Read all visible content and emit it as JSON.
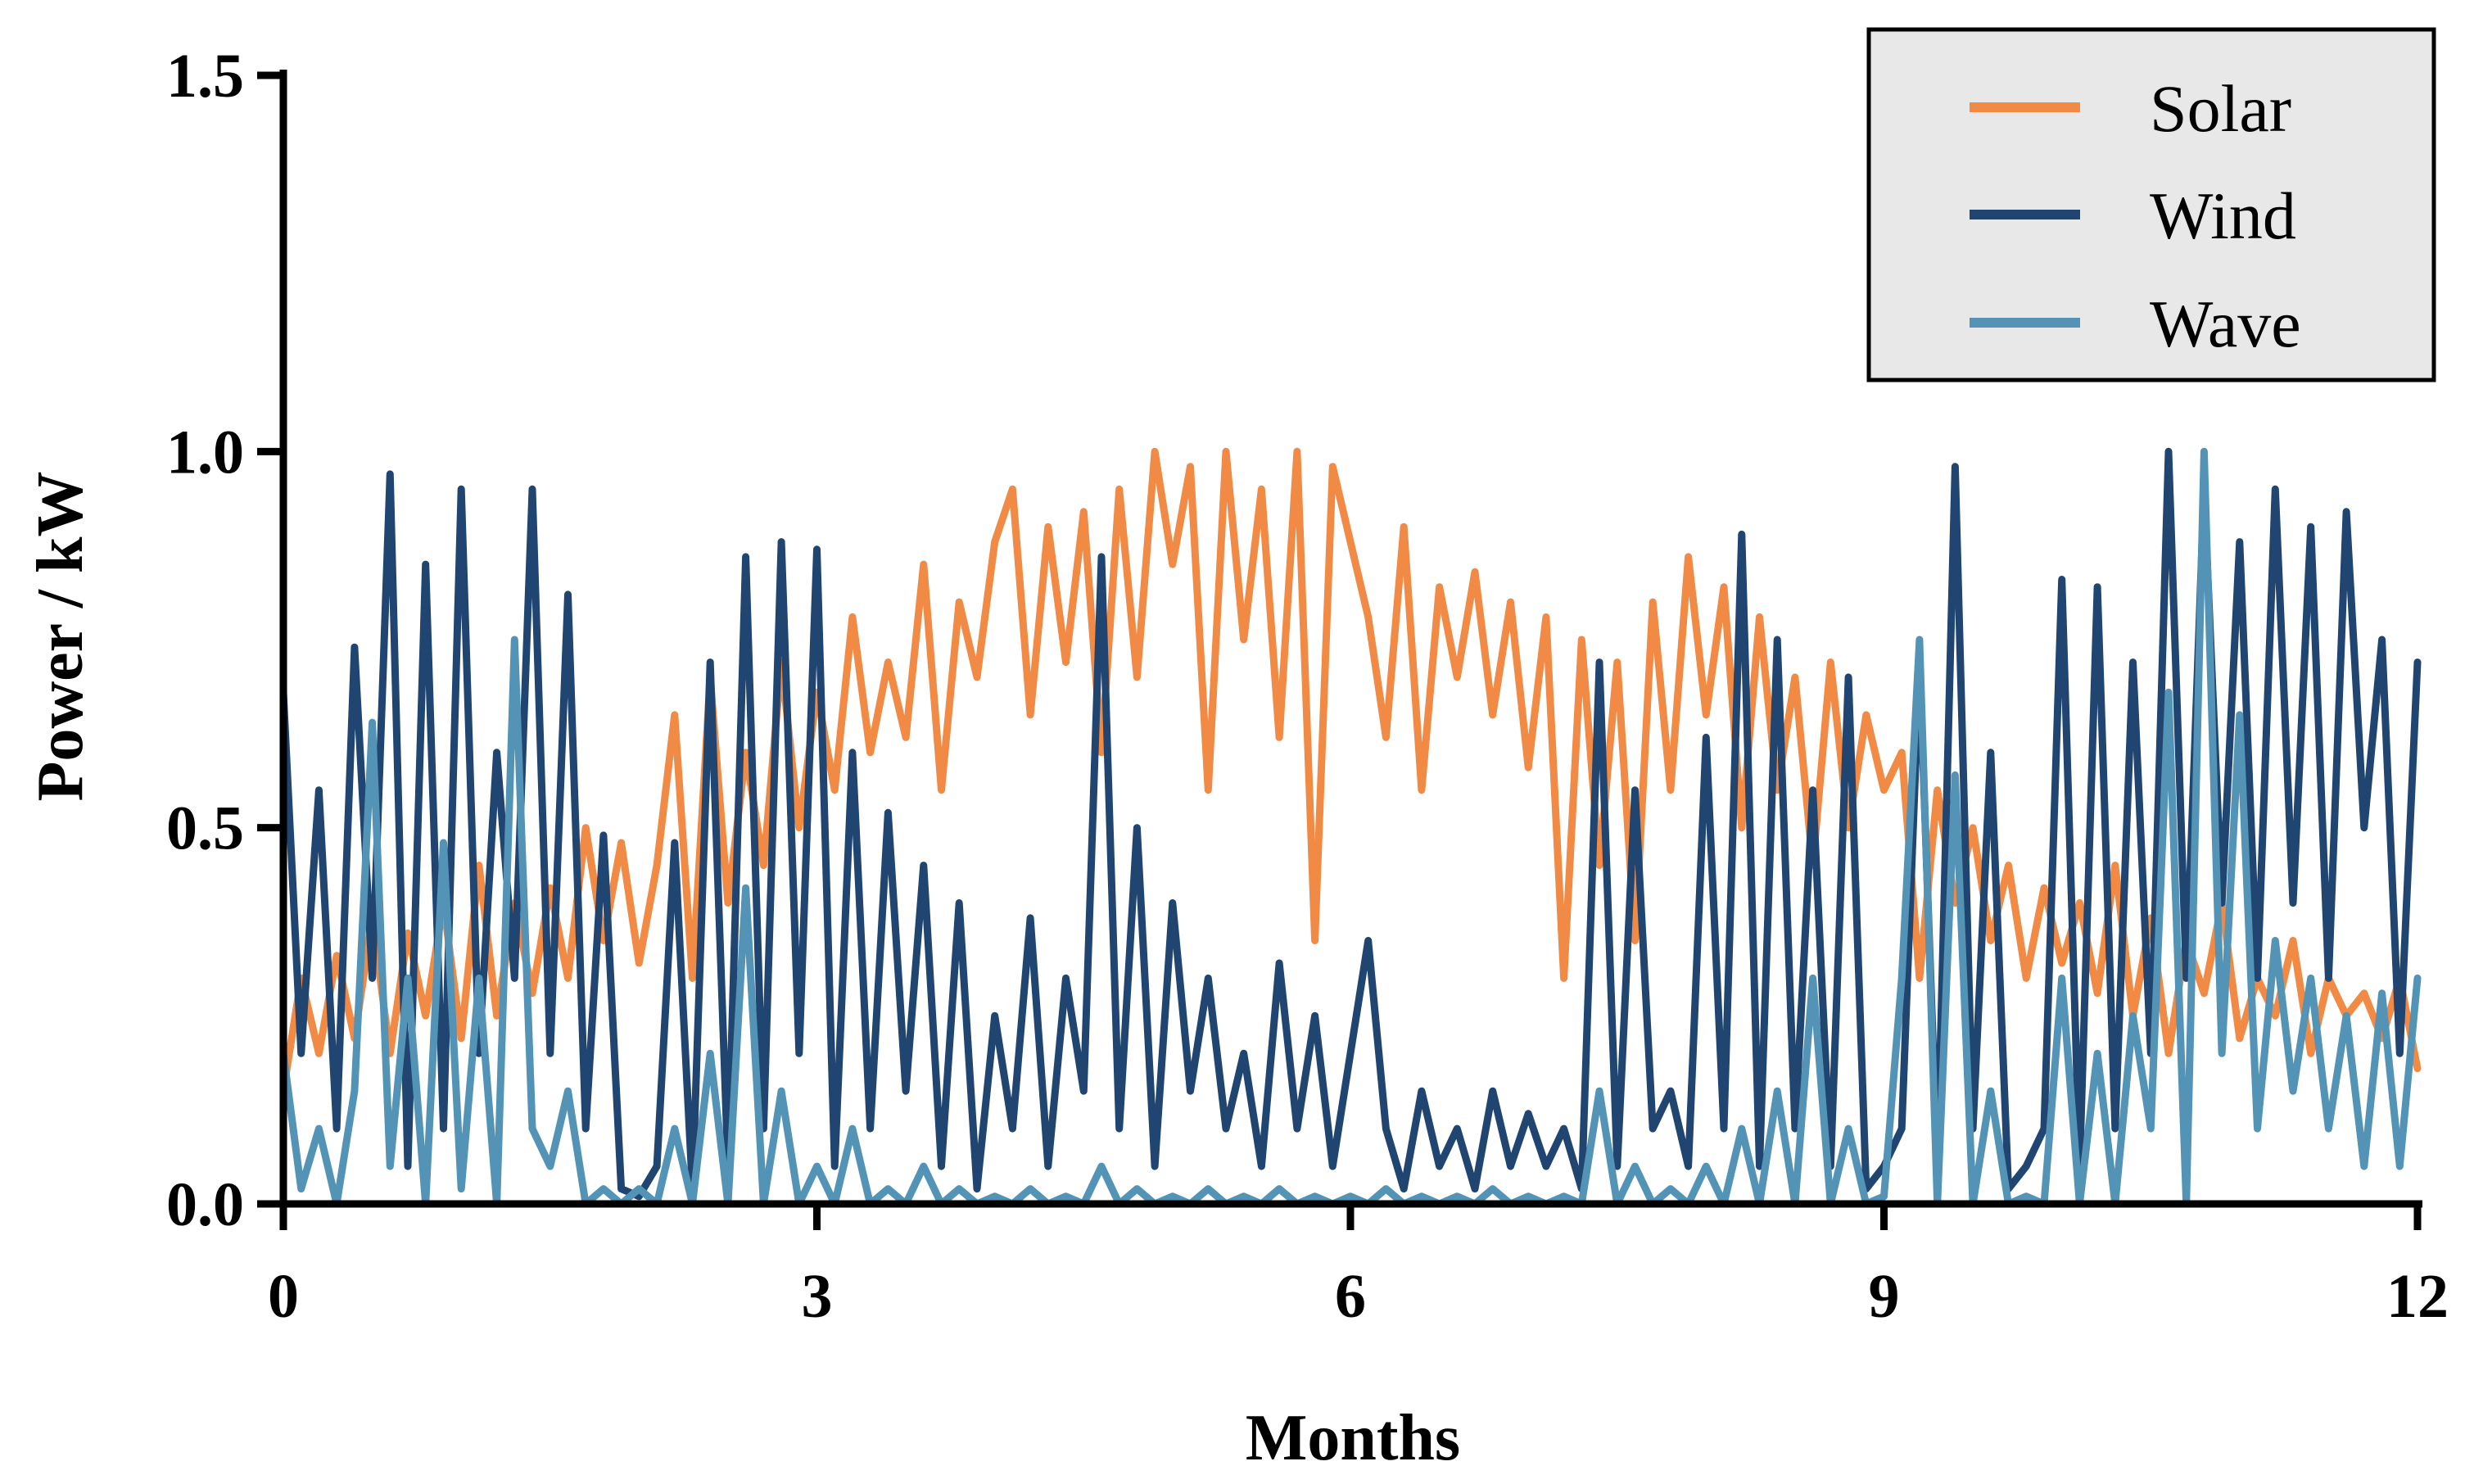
{
  "chart_data": {
    "type": "line",
    "title": "",
    "xlabel": "Months",
    "ylabel": "Power / kW",
    "xlim": [
      0,
      12
    ],
    "ylim": [
      0,
      1.5
    ],
    "xticks": [
      0,
      3,
      6,
      9,
      12
    ],
    "xtick_labels": [
      "0",
      "3",
      "6",
      "9",
      "12"
    ],
    "yticks": [
      0,
      0.5,
      1.0,
      1.5
    ],
    "ytick_labels": [
      "0.0",
      "0.5",
      "1.0",
      "1.5"
    ],
    "grid": false,
    "legend": {
      "position": "top-right",
      "entries": [
        "Solar",
        "Wind",
        "Wave"
      ]
    },
    "series": [
      {
        "name": "Solar",
        "color": "#F08A45",
        "x": [
          0.0,
          0.1,
          0.2,
          0.3,
          0.4,
          0.5,
          0.6,
          0.7,
          0.8,
          0.9,
          1.0,
          1.1,
          1.2,
          1.3,
          1.4,
          1.5,
          1.6,
          1.7,
          1.8,
          1.9,
          2.0,
          2.1,
          2.2,
          2.3,
          2.4,
          2.5,
          2.6,
          2.7,
          2.8,
          2.9,
          3.0,
          3.1,
          3.2,
          3.3,
          3.4,
          3.5,
          3.6,
          3.7,
          3.8,
          3.9,
          4.0,
          4.1,
          4.2,
          4.3,
          4.4,
          4.5,
          4.6,
          4.7,
          4.8,
          4.9,
          5.0,
          5.1,
          5.2,
          5.3,
          5.4,
          5.5,
          5.6,
          5.7,
          5.8,
          5.9,
          6.0,
          6.1,
          6.2,
          6.3,
          6.4,
          6.5,
          6.6,
          6.7,
          6.8,
          6.9,
          7.0,
          7.1,
          7.2,
          7.3,
          7.4,
          7.5,
          7.6,
          7.7,
          7.8,
          7.9,
          8.0,
          8.1,
          8.2,
          8.3,
          8.4,
          8.5,
          8.6,
          8.7,
          8.8,
          8.9,
          9.0,
          9.1,
          9.2,
          9.3,
          9.4,
          9.5,
          9.6,
          9.7,
          9.8,
          9.9,
          10.0,
          10.1,
          10.2,
          10.3,
          10.4,
          10.5,
          10.6,
          10.7,
          10.8,
          10.9,
          11.0,
          11.1,
          11.2,
          11.3,
          11.4,
          11.5,
          11.6,
          11.7,
          11.8,
          11.9,
          12.0
        ],
        "values": [
          0.15,
          0.3,
          0.2,
          0.33,
          0.22,
          0.38,
          0.2,
          0.36,
          0.25,
          0.4,
          0.22,
          0.45,
          0.25,
          0.4,
          0.28,
          0.42,
          0.3,
          0.5,
          0.35,
          0.48,
          0.32,
          0.45,
          0.65,
          0.3,
          0.7,
          0.4,
          0.6,
          0.45,
          0.72,
          0.5,
          0.68,
          0.55,
          0.78,
          0.6,
          0.72,
          0.62,
          0.85,
          0.55,
          0.8,
          0.7,
          0.88,
          0.95,
          0.65,
          0.9,
          0.72,
          0.92,
          0.6,
          0.95,
          0.7,
          1.0,
          0.85,
          0.98,
          0.55,
          1.0,
          0.75,
          0.95,
          0.62,
          1.0,
          0.35,
          0.98,
          0.88,
          0.78,
          0.62,
          0.9,
          0.55,
          0.82,
          0.7,
          0.84,
          0.65,
          0.8,
          0.58,
          0.78,
          0.3,
          0.75,
          0.45,
          0.72,
          0.35,
          0.8,
          0.55,
          0.86,
          0.65,
          0.82,
          0.5,
          0.78,
          0.55,
          0.7,
          0.45,
          0.72,
          0.5,
          0.65,
          0.55,
          0.6,
          0.3,
          0.55,
          0.4,
          0.5,
          0.35,
          0.45,
          0.3,
          0.42,
          0.32,
          0.4,
          0.28,
          0.45,
          0.25,
          0.38,
          0.2,
          0.35,
          0.28,
          0.4,
          0.22,
          0.3,
          0.25,
          0.35,
          0.2,
          0.3,
          0.25,
          0.28,
          0.22,
          0.3,
          0.18
        ]
      },
      {
        "name": "Wind",
        "color": "#1F4570",
        "x": [
          0.0,
          0.1,
          0.2,
          0.3,
          0.4,
          0.5,
          0.6,
          0.7,
          0.8,
          0.9,
          1.0,
          1.1,
          1.2,
          1.3,
          1.4,
          1.5,
          1.6,
          1.7,
          1.8,
          1.9,
          2.0,
          2.1,
          2.2,
          2.3,
          2.4,
          2.5,
          2.6,
          2.7,
          2.8,
          2.9,
          3.0,
          3.1,
          3.2,
          3.3,
          3.4,
          3.5,
          3.6,
          3.7,
          3.8,
          3.9,
          4.0,
          4.1,
          4.2,
          4.3,
          4.4,
          4.5,
          4.6,
          4.7,
          4.8,
          4.9,
          5.0,
          5.1,
          5.2,
          5.3,
          5.4,
          5.5,
          5.6,
          5.7,
          5.8,
          5.9,
          6.0,
          6.1,
          6.2,
          6.3,
          6.4,
          6.5,
          6.6,
          6.7,
          6.8,
          6.9,
          7.0,
          7.1,
          7.2,
          7.3,
          7.4,
          7.5,
          7.6,
          7.7,
          7.8,
          7.9,
          8.0,
          8.1,
          8.2,
          8.3,
          8.4,
          8.5,
          8.6,
          8.7,
          8.8,
          8.9,
          9.0,
          9.1,
          9.2,
          9.3,
          9.4,
          9.5,
          9.6,
          9.7,
          9.8,
          9.9,
          10.0,
          10.1,
          10.2,
          10.3,
          10.4,
          10.5,
          10.6,
          10.7,
          10.8,
          10.9,
          11.0,
          11.1,
          11.2,
          11.3,
          11.4,
          11.5,
          11.6,
          11.7,
          11.8,
          11.9,
          12.0
        ],
        "values": [
          0.68,
          0.2,
          0.55,
          0.1,
          0.74,
          0.3,
          0.97,
          0.05,
          0.85,
          0.1,
          0.95,
          0.2,
          0.6,
          0.3,
          0.95,
          0.2,
          0.81,
          0.1,
          0.49,
          0.02,
          0.01,
          0.05,
          0.48,
          0.02,
          0.72,
          0.05,
          0.86,
          0.1,
          0.88,
          0.2,
          0.87,
          0.05,
          0.6,
          0.1,
          0.52,
          0.15,
          0.45,
          0.05,
          0.4,
          0.02,
          0.25,
          0.1,
          0.38,
          0.05,
          0.3,
          0.15,
          0.86,
          0.1,
          0.5,
          0.05,
          0.4,
          0.15,
          0.3,
          0.1,
          0.2,
          0.05,
          0.32,
          0.1,
          0.25,
          0.05,
          0.2,
          0.35,
          0.1,
          0.02,
          0.15,
          0.05,
          0.1,
          0.02,
          0.15,
          0.05,
          0.12,
          0.05,
          0.1,
          0.02,
          0.72,
          0.05,
          0.55,
          0.1,
          0.15,
          0.05,
          0.62,
          0.1,
          0.89,
          0.05,
          0.75,
          0.1,
          0.55,
          0.05,
          0.7,
          0.02,
          0.05,
          0.1,
          0.72,
          0.05,
          0.98,
          0.1,
          0.6,
          0.02,
          0.05,
          0.1,
          0.83,
          0.05,
          0.82,
          0.1,
          0.72,
          0.2,
          1.0,
          0.3,
          0.95,
          0.4,
          0.88,
          0.3,
          0.95,
          0.4,
          0.9,
          0.3,
          0.92,
          0.5,
          0.75,
          0.2,
          0.72
        ]
      },
      {
        "name": "Wave",
        "color": "#5393B5",
        "x": [
          0.0,
          0.1,
          0.2,
          0.3,
          0.4,
          0.5,
          0.6,
          0.7,
          0.8,
          0.9,
          1.0,
          1.1,
          1.2,
          1.3,
          1.4,
          1.5,
          1.6,
          1.7,
          1.8,
          1.9,
          2.0,
          2.1,
          2.2,
          2.3,
          2.4,
          2.5,
          2.6,
          2.7,
          2.8,
          2.9,
          3.0,
          3.1,
          3.2,
          3.3,
          3.4,
          3.5,
          3.6,
          3.7,
          3.8,
          3.9,
          4.0,
          4.1,
          4.2,
          4.3,
          4.4,
          4.5,
          4.6,
          4.7,
          4.8,
          4.9,
          5.0,
          5.1,
          5.2,
          5.3,
          5.4,
          5.5,
          5.6,
          5.7,
          5.8,
          5.9,
          6.0,
          6.1,
          6.2,
          6.3,
          6.4,
          6.5,
          6.6,
          6.7,
          6.8,
          6.9,
          7.0,
          7.1,
          7.2,
          7.3,
          7.4,
          7.5,
          7.6,
          7.7,
          7.8,
          7.9,
          8.0,
          8.1,
          8.2,
          8.3,
          8.4,
          8.5,
          8.6,
          8.7,
          8.8,
          8.9,
          9.0,
          9.1,
          9.2,
          9.3,
          9.4,
          9.5,
          9.6,
          9.7,
          9.8,
          9.9,
          10.0,
          10.1,
          10.2,
          10.3,
          10.4,
          10.5,
          10.6,
          10.7,
          10.8,
          10.9,
          11.0,
          11.1,
          11.2,
          11.3,
          11.4,
          11.5,
          11.6,
          11.7,
          11.8,
          11.9,
          12.0
        ],
        "values": [
          0.2,
          0.02,
          0.1,
          0.0,
          0.15,
          0.64,
          0.05,
          0.3,
          0.0,
          0.48,
          0.02,
          0.3,
          0.0,
          0.75,
          0.1,
          0.05,
          0.15,
          0.0,
          0.02,
          0.0,
          0.02,
          0.0,
          0.1,
          0.0,
          0.2,
          0.0,
          0.42,
          0.0,
          0.15,
          0.0,
          0.05,
          0.0,
          0.1,
          0.0,
          0.02,
          0.0,
          0.05,
          0.0,
          0.02,
          0.0,
          0.01,
          0.0,
          0.02,
          0.0,
          0.01,
          0.0,
          0.05,
          0.0,
          0.02,
          0.0,
          0.01,
          0.0,
          0.02,
          0.0,
          0.01,
          0.0,
          0.02,
          0.0,
          0.01,
          0.0,
          0.01,
          0.0,
          0.02,
          0.0,
          0.01,
          0.0,
          0.01,
          0.0,
          0.02,
          0.0,
          0.01,
          0.0,
          0.01,
          0.0,
          0.15,
          0.0,
          0.05,
          0.0,
          0.02,
          0.0,
          0.05,
          0.0,
          0.1,
          0.0,
          0.15,
          0.0,
          0.3,
          0.0,
          0.1,
          0.0,
          0.01,
          0.3,
          0.75,
          0.0,
          0.57,
          0.0,
          0.15,
          0.0,
          0.01,
          0.0,
          0.3,
          0.0,
          0.2,
          0.0,
          0.25,
          0.1,
          0.68,
          0.0,
          1.0,
          0.2,
          0.65,
          0.1,
          0.35,
          0.15,
          0.3,
          0.1,
          0.25,
          0.05,
          0.28,
          0.05,
          0.3
        ]
      }
    ]
  }
}
